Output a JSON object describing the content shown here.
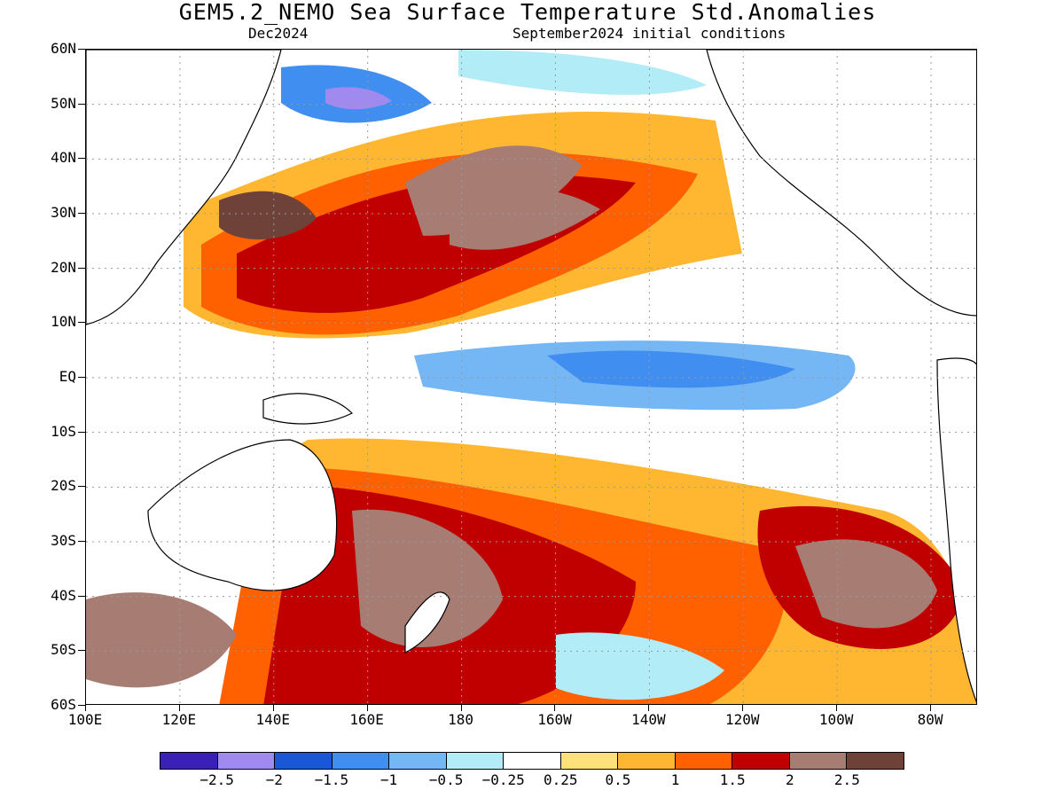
{
  "header": {
    "title": "GEM5.2_NEMO Sea Surface Temperature Std.Anomalies",
    "valid": "Dec2024",
    "init": "September2024 initial conditions"
  },
  "map": {
    "lat_labels": [
      "60N",
      "50N",
      "40N",
      "30N",
      "20N",
      "10N",
      "EQ",
      "10S",
      "20S",
      "30S",
      "40S",
      "50S",
      "60S"
    ],
    "lon_labels": [
      "100E",
      "120E",
      "140E",
      "160E",
      "180",
      "160W",
      "140W",
      "120W",
      "100W",
      "80W"
    ]
  },
  "colorbar": {
    "colors": [
      "#3a1fb8",
      "#a08af0",
      "#1a56d8",
      "#3f8ef0",
      "#75b6f5",
      "#b1ecf7",
      "#ffffff",
      "#ffe07a",
      "#ffb732",
      "#ff6000",
      "#c00000",
      "#a67c73",
      "#6e4238"
    ],
    "labels": [
      "−2.5",
      "−2",
      "−1.5",
      "−1",
      "−0.5",
      "−0.25",
      "0.25",
      "0.5",
      "1",
      "1.5",
      "2",
      "2.5"
    ]
  },
  "legend_meaning": {
    "deep_blue": "very negative anomaly",
    "white": "near zero",
    "dark_brown": "very positive anomaly"
  }
}
